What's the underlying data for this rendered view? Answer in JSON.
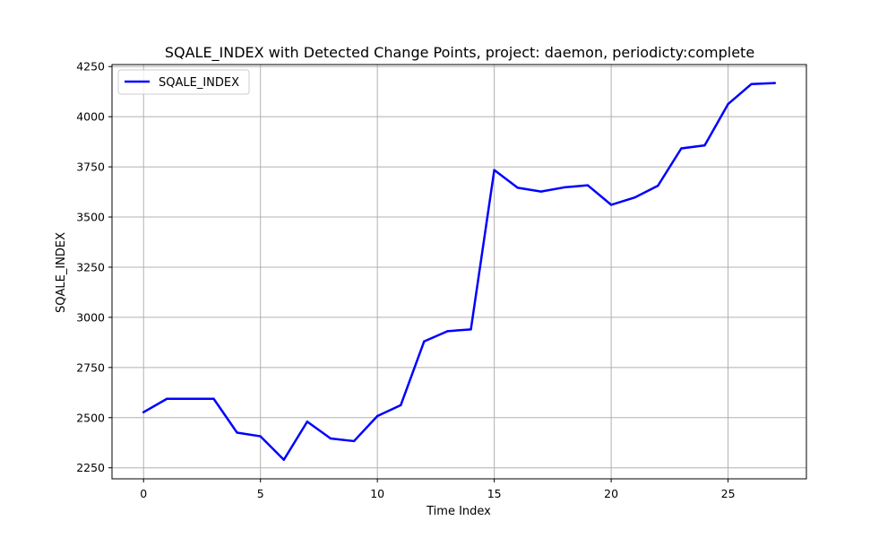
{
  "chart_data": {
    "type": "line",
    "title": "SQALE_INDEX with Detected Change Points, project: daemon, periodicty:complete",
    "xlabel": "Time Index",
    "ylabel": "SQALE_INDEX",
    "xlim": [
      -1.35,
      28.35
    ],
    "ylim": [
      2195,
      4260
    ],
    "xticks": [
      0,
      5,
      10,
      15,
      20,
      25
    ],
    "yticks": [
      2250,
      2500,
      2750,
      3000,
      3250,
      3500,
      3750,
      4000,
      4250
    ],
    "grid": true,
    "legend_position": "upper left",
    "x": [
      0,
      1,
      2,
      3,
      4,
      5,
      6,
      7,
      8,
      9,
      10,
      11,
      12,
      13,
      14,
      15,
      16,
      17,
      18,
      19,
      20,
      21,
      22,
      23,
      24,
      25,
      26,
      27
    ],
    "series": [
      {
        "name": "SQALE_INDEX",
        "color": "#0000ff",
        "values": [
          2527,
          2594,
          2594,
          2594,
          2425,
          2407,
          2290,
          2480,
          2396,
          2383,
          2508,
          2562,
          2880,
          2931,
          2940,
          3734,
          3646,
          3627,
          3648,
          3658,
          3561,
          3597,
          3656,
          3842,
          3857,
          4063,
          4163,
          4168
        ]
      }
    ]
  }
}
